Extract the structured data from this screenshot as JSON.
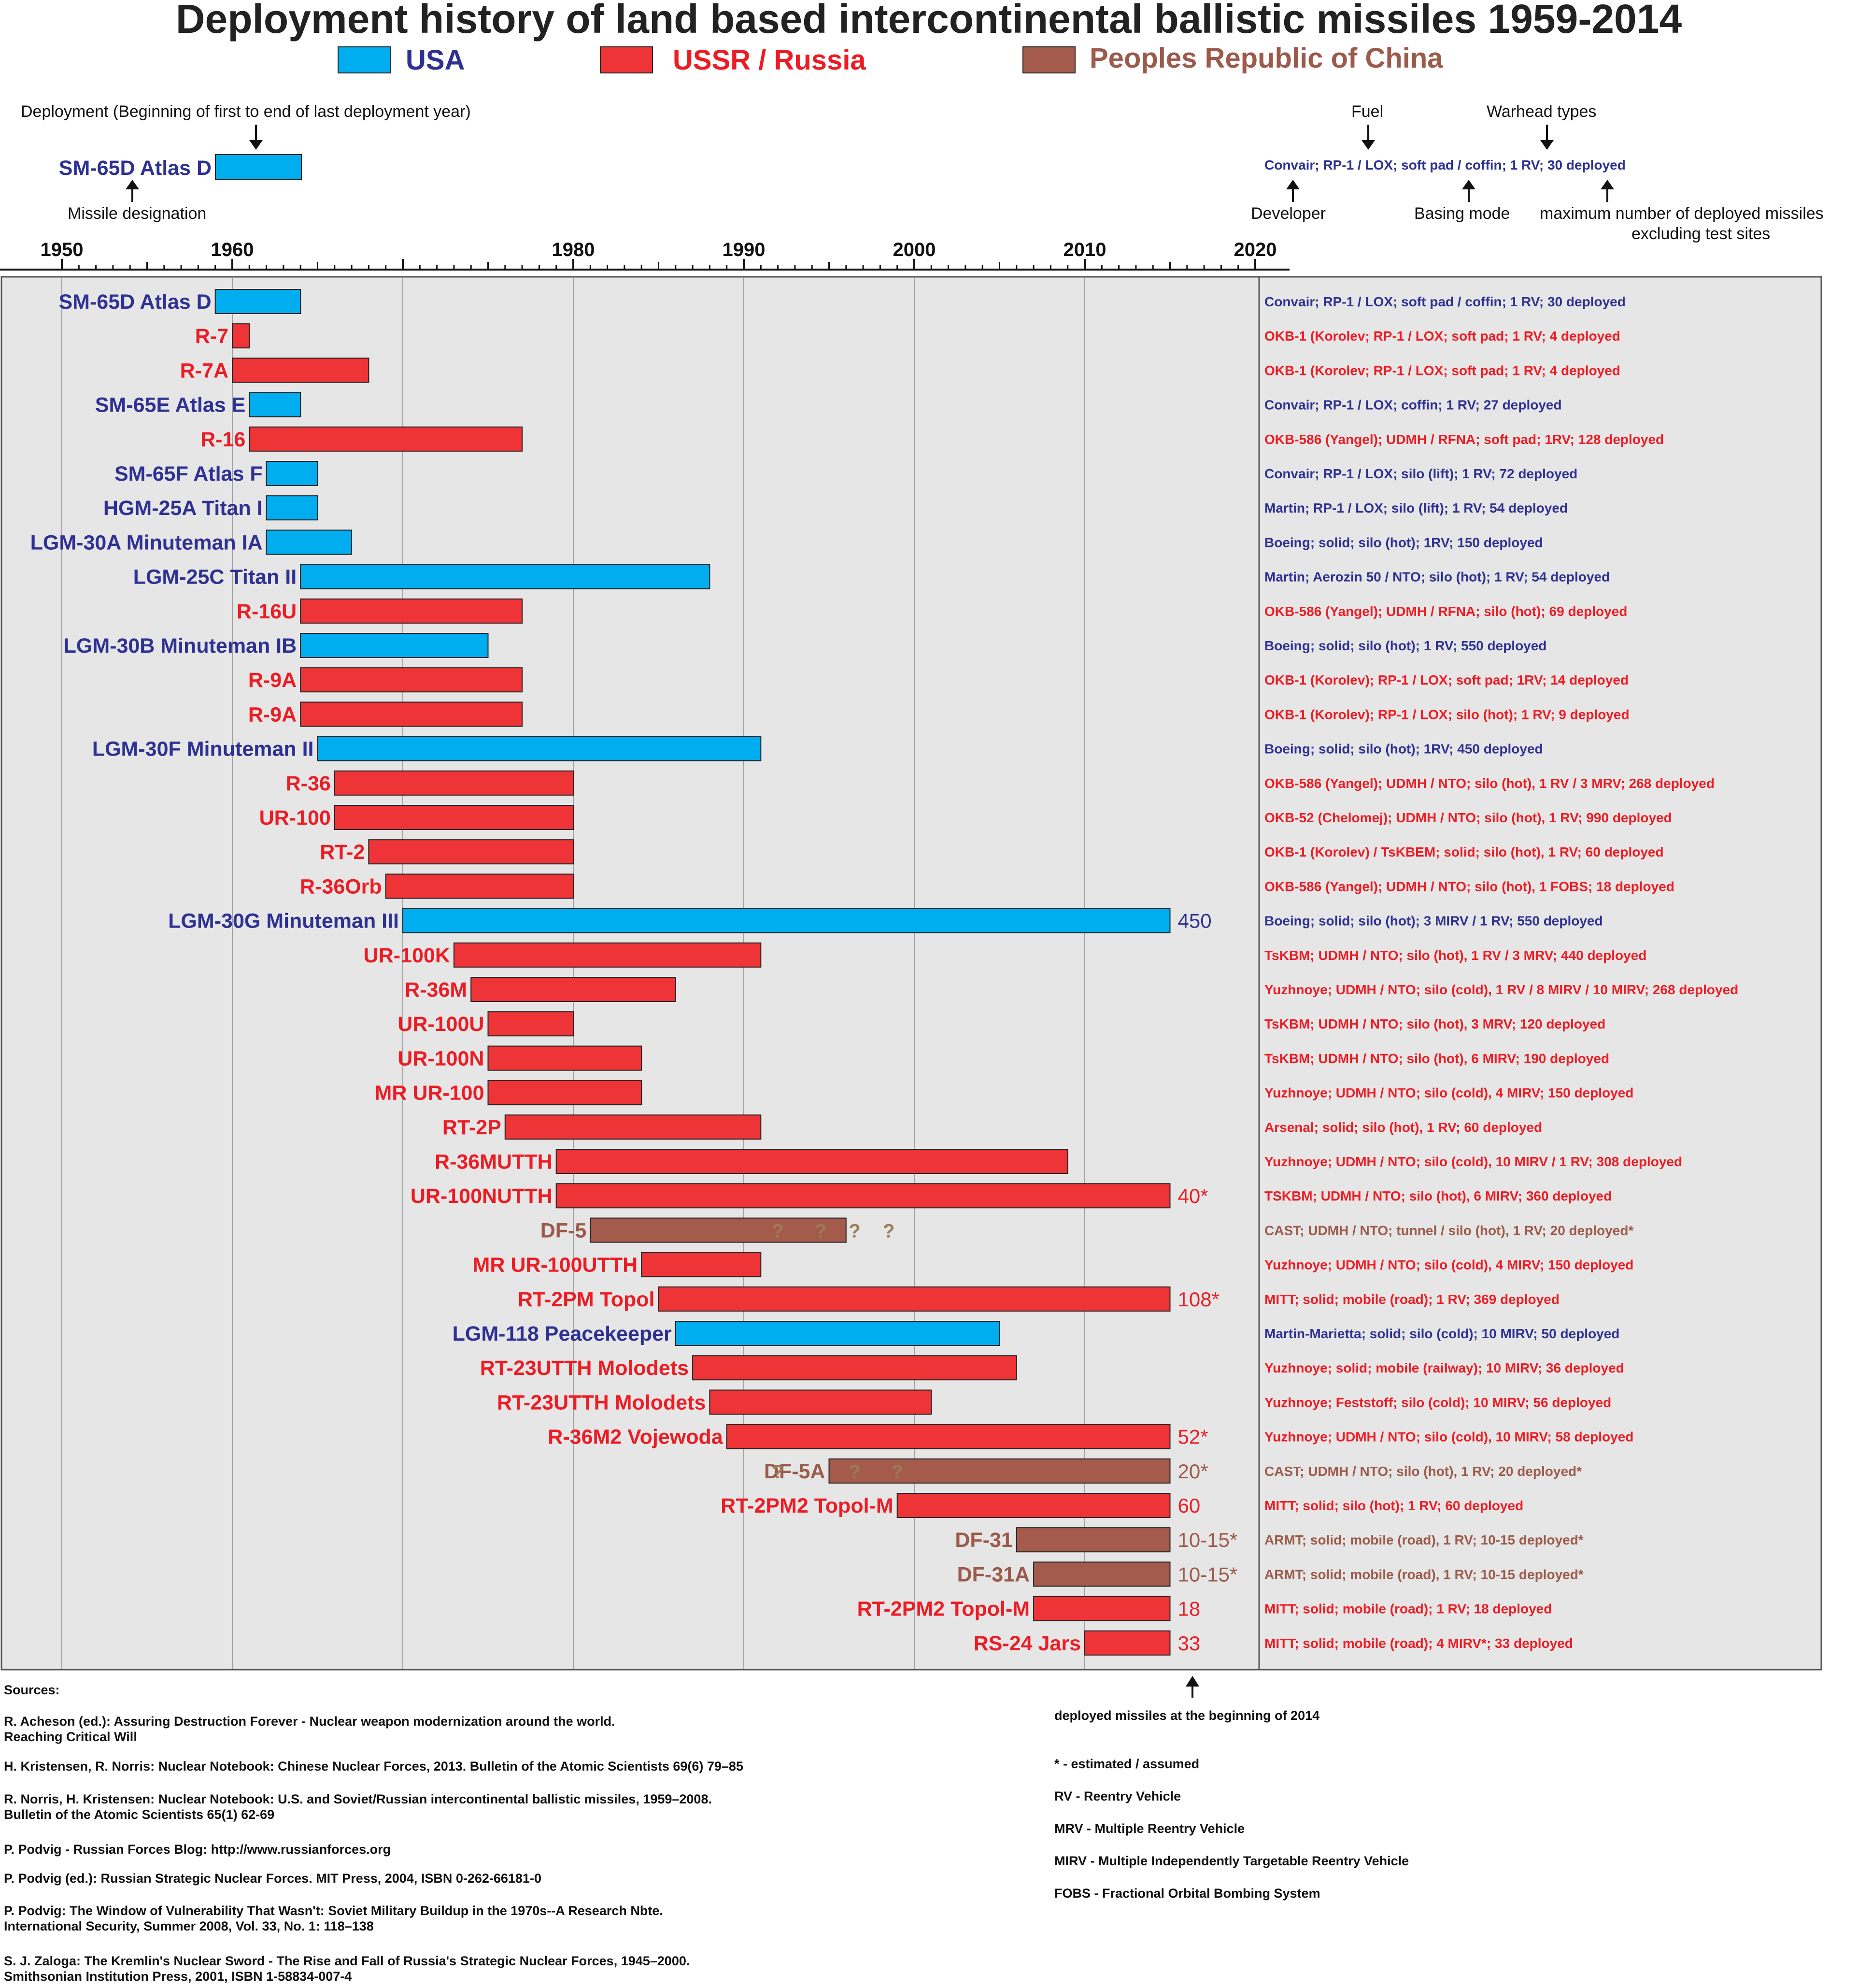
{
  "title": "Deployment history of land based intercontinental ballistic missiles 1959-2014",
  "colors": {
    "USA": "#00aeef",
    "USSR": "#ef3438",
    "PRC": "#a45b4c",
    "USA_text": "#2e3192",
    "USSR_text": "#ed1c24",
    "PRC_text": "#9b5a4a",
    "panel": "#e6e6e6"
  },
  "legend": [
    {
      "key": "USA",
      "label": "USA"
    },
    {
      "key": "USSR",
      "label": "USSR / Russia"
    },
    {
      "key": "PRC",
      "label": "Peoples Republic of China"
    }
  ],
  "example": {
    "deployment_label": "Deployment (Beginning of first to end of last deployment year)",
    "designation_label": "Missile designation",
    "missile": "SM-65D Atlas D",
    "info": "Convair; RP-1 / LOX; soft pad / coffin; 1 RV; 30 deployed",
    "fuel_label": "Fuel",
    "warhead_label": "Warhead types",
    "developer_label": "Developer",
    "basing_label": "Basing mode",
    "max_label_1": "maximum number of  deployed missiles",
    "max_label_2": "excluding test sites"
  },
  "chart_data": {
    "type": "gantt",
    "x_axis": {
      "min": 1950,
      "max": 2020,
      "major_ticks": [
        1950,
        1960,
        1980,
        1990,
        2000,
        2010,
        2020
      ]
    },
    "rows": [
      {
        "name": "SM-65D Atlas D",
        "country": "USA",
        "start": 1959,
        "end": 1964,
        "info": "Convair; RP-1 / LOX; soft pad / coffin; 1 RV; 30 deployed"
      },
      {
        "name": "R-7",
        "country": "USSR",
        "start": 1960,
        "end": 1961,
        "info": "OKB-1 (Korolev; RP-1 / LOX; soft pad; 1 RV; 4 deployed"
      },
      {
        "name": "R-7A",
        "country": "USSR",
        "start": 1960,
        "end": 1968,
        "info": "OKB-1 (Korolev; RP-1 / LOX; soft pad; 1 RV; 4 deployed"
      },
      {
        "name": "SM-65E Atlas E",
        "country": "USA",
        "start": 1961,
        "end": 1964,
        "info": "Convair; RP-1 / LOX; coffin; 1 RV; 27 deployed"
      },
      {
        "name": "R-16",
        "country": "USSR",
        "start": 1961,
        "end": 1977,
        "info": "OKB-586 (Yangel); UDMH / RFNA; soft pad; 1RV; 128 deployed"
      },
      {
        "name": "SM-65F Atlas F",
        "country": "USA",
        "start": 1962,
        "end": 1965,
        "info": "Convair; RP-1 / LOX; silo (lift); 1 RV; 72 deployed"
      },
      {
        "name": "HGM-25A Titan I",
        "country": "USA",
        "start": 1962,
        "end": 1965,
        "info": "Martin; RP-1 / LOX; silo (lift); 1 RV; 54 deployed"
      },
      {
        "name": "LGM-30A Minuteman IA",
        "country": "USA",
        "start": 1962,
        "end": 1967,
        "info": "Boeing; solid; silo (hot); 1RV; 150 deployed"
      },
      {
        "name": "LGM-25C Titan II",
        "country": "USA",
        "start": 1964,
        "end": 1988,
        "info": "Martin; Aerozin 50 / NTO; silo (hot); 1 RV; 54 deployed"
      },
      {
        "name": "R-16U",
        "country": "USSR",
        "start": 1964,
        "end": 1977,
        "info": "OKB-586 (Yangel); UDMH / RFNA; silo (hot); 69 deployed"
      },
      {
        "name": "LGM-30B Minuteman IB",
        "country": "USA",
        "start": 1964,
        "end": 1975,
        "info": "Boeing; solid; silo (hot); 1 RV; 550 deployed"
      },
      {
        "name": "R-9A",
        "country": "USSR",
        "start": 1964,
        "end": 1977,
        "info": "OKB-1 (Korolev); RP-1 / LOX; soft pad; 1RV; 14 deployed"
      },
      {
        "name": "R-9A",
        "country": "USSR",
        "start": 1964,
        "end": 1977,
        "info": "OKB-1 (Korolev); RP-1 / LOX; silo (hot); 1 RV; 9 deployed"
      },
      {
        "name": "LGM-30F Minuteman II",
        "country": "USA",
        "start": 1965,
        "end": 1991,
        "info": "Boeing; solid; silo (hot); 1RV; 450 deployed"
      },
      {
        "name": "R-36",
        "country": "USSR",
        "start": 1966,
        "end": 1980,
        "info": "OKB-586 (Yangel); UDMH / NTO; silo (hot), 1 RV / 3 MRV; 268 deployed"
      },
      {
        "name": "UR-100",
        "country": "USSR",
        "start": 1966,
        "end": 1980,
        "info": "OKB-52 (Chelomej); UDMH / NTO; silo (hot), 1 RV; 990 deployed"
      },
      {
        "name": "RT-2",
        "country": "USSR",
        "start": 1968,
        "end": 1980,
        "info": "OKB-1 (Korolev) / TsKBEM; solid; silo (hot), 1 RV; 60 deployed"
      },
      {
        "name": "R-36Orb",
        "country": "USSR",
        "start": 1969,
        "end": 1980,
        "info": "OKB-586 (Yangel); UDMH / NTO; silo (hot), 1 FOBS; 18 deployed"
      },
      {
        "name": "LGM-30G Minuteman III",
        "country": "USA",
        "start": 1970,
        "end": 2015,
        "count": "450",
        "info": "Boeing; solid; silo (hot); 3 MIRV / 1 RV; 550 deployed"
      },
      {
        "name": "UR-100K",
        "country": "USSR",
        "start": 1973,
        "end": 1991,
        "info": "TsKBM; UDMH / NTO; silo (hot), 1 RV / 3 MRV; 440 deployed"
      },
      {
        "name": "R-36M",
        "country": "USSR",
        "start": 1974,
        "end": 1986,
        "info": "Yuzhnoye; UDMH / NTO; silo (cold), 1 RV / 8 MIRV / 10 MIRV; 268 deployed"
      },
      {
        "name": "UR-100U",
        "country": "USSR",
        "start": 1975,
        "end": 1980,
        "info": "TsKBM; UDMH / NTO; silo (hot), 3 MRV; 120 deployed"
      },
      {
        "name": "UR-100N",
        "country": "USSR",
        "start": 1975,
        "end": 1984,
        "info": "TsKBM; UDMH / NTO; silo (hot), 6 MIRV; 190 deployed"
      },
      {
        "name": "MR UR-100",
        "country": "USSR",
        "start": 1975,
        "end": 1984,
        "info": "Yuzhnoye; UDMH / NTO; silo (cold), 4 MIRV; 150 deployed"
      },
      {
        "name": "RT-2P",
        "country": "USSR",
        "start": 1976,
        "end": 1991,
        "info": "Arsenal; solid; silo (hot), 1 RV; 60 deployed"
      },
      {
        "name": "R-36MUTTH",
        "country": "USSR",
        "start": 1979,
        "end": 2009,
        "info": "Yuzhnoye; UDMH / NTO; silo (cold), 10 MIRV / 1 RV; 308 deployed"
      },
      {
        "name": "UR-100NUTTH",
        "country": "USSR",
        "start": 1979,
        "end": 2015,
        "count": "40*",
        "info": "TSKBM; UDMH / NTO; silo (hot), 6 MIRV; 360 deployed"
      },
      {
        "name": "DF-5",
        "country": "PRC",
        "start": 1981,
        "end": 1996,
        "questions": [
          1992,
          1994.5,
          1996.5,
          1998.5
        ],
        "info": "CAST; UDMH / NTO; tunnel / silo (hot), 1 RV; 20 deployed*"
      },
      {
        "name": "MR UR-100UTTH",
        "country": "USSR",
        "start": 1984,
        "end": 1991,
        "info": "Yuzhnoye; UDMH / NTO; silo (cold), 4 MIRV; 150 deployed"
      },
      {
        "name": "RT-2PM Topol",
        "country": "USSR",
        "start": 1985,
        "end": 2015,
        "count": "108*",
        "info": "MITT; solid; mobile (road); 1 RV; 369 deployed"
      },
      {
        "name": "LGM-118 Peacekeeper",
        "country": "USA",
        "start": 1986,
        "end": 2005,
        "info": "Martin-Marietta; solid; silo (cold); 10 MIRV; 50 deployed"
      },
      {
        "name": "RT-23UTTH Molodets",
        "country": "USSR",
        "start": 1987,
        "end": 2006,
        "info": "Yuzhnoye; solid; mobile (railway); 10 MIRV; 36 deployed"
      },
      {
        "name": "RT-23UTTH Molodets",
        "country": "USSR",
        "start": 1988,
        "end": 2001,
        "info": "Yuzhnoye; Feststoff; silo (cold); 10 MIRV; 56 deployed"
      },
      {
        "name": "R-36M2 Vojewoda",
        "country": "USSR",
        "start": 1989,
        "end": 2015,
        "count": "52*",
        "info": "Yuzhnoye; UDMH / NTO; silo (cold), 10 MIRV; 58 deployed"
      },
      {
        "name": "DF-5A",
        "country": "PRC",
        "start": 1995,
        "end": 2015,
        "count": "20*",
        "questions": [
          1992,
          1996.5,
          1999
        ],
        "info": "CAST; UDMH / NTO; silo (hot), 1 RV; 20 deployed*"
      },
      {
        "name": "RT-2PM2 Topol-M",
        "country": "USSR",
        "start": 1999,
        "end": 2015,
        "count": "60",
        "info": "MITT; solid; silo (hot); 1 RV; 60 deployed"
      },
      {
        "name": "DF-31",
        "country": "PRC",
        "start": 2006,
        "end": 2015,
        "count": "10-15*",
        "info": "ARMT; solid; mobile (road), 1 RV; 10-15 deployed*"
      },
      {
        "name": "DF-31A",
        "country": "PRC",
        "start": 2007,
        "end": 2015,
        "count": "10-15*",
        "info": "ARMT; solid; mobile (road), 1 RV; 10-15 deployed*"
      },
      {
        "name": "RT-2PM2 Topol-M",
        "country": "USSR",
        "start": 2007,
        "end": 2015,
        "count": "18",
        "info": "MITT; solid; mobile (road); 1 RV; 18 deployed"
      },
      {
        "name": "RS-24 Jars",
        "country": "USSR",
        "start": 2010,
        "end": 2015,
        "count": "33",
        "info": "MITT; solid; mobile (road); 4 MIRV*; 33 deployed"
      }
    ]
  },
  "deployed_note": "deployed missiles at the beginning of 2014",
  "sources_title": "Sources:",
  "sources": [
    [
      "R. Acheson (ed.): Assuring Destruction Forever - Nuclear weapon modernization around the world.",
      "Reaching Critical Will"
    ],
    [
      "H. Kristensen, R. Norris: Nuclear Notebook: Chinese Nuclear Forces, 2013. Bulletin of the Atomic Scientists 69(6) 79–85"
    ],
    [
      "R. Norris, H. Kristensen:  Nuclear Notebook: U.S. and Soviet/Russian intercontinental ballistic missiles, 1959–2008.",
      "Bulletin of the Atomic Scientists 65(1) 62-69"
    ],
    [
      "P. Podvig - Russian Forces Blog: http://www.russianforces.org"
    ],
    [
      "P. Podvig (ed.): Russian Strategic Nuclear Forces. MIT Press, 2004, ISBN 0-262-66181-0"
    ],
    [
      "P. Podvig: The Window of Vulnerability That Wasn't: Soviet Military Buildup in the 1970s--A Research Nbte.",
      "International Security, Summer 2008, Vol. 33, No. 1: 118–138"
    ],
    [
      "S. J. Zaloga: The Kremlin's Nuclear Sword - The Rise and Fall of Russia's Strategic Nuclear Forces, 1945–2000.",
      "Smithsonian Institution Press, 2001, ISBN 1-58834-007-4"
    ]
  ],
  "glossary": [
    "* - estimated / assumed",
    "RV - Reentry Vehicle",
    "MRV - Multiple Reentry Vehicle",
    "MIRV - Multiple Independently Targetable Reentry Vehicle",
    "FOBS - Fractional Orbital Bombing System"
  ]
}
